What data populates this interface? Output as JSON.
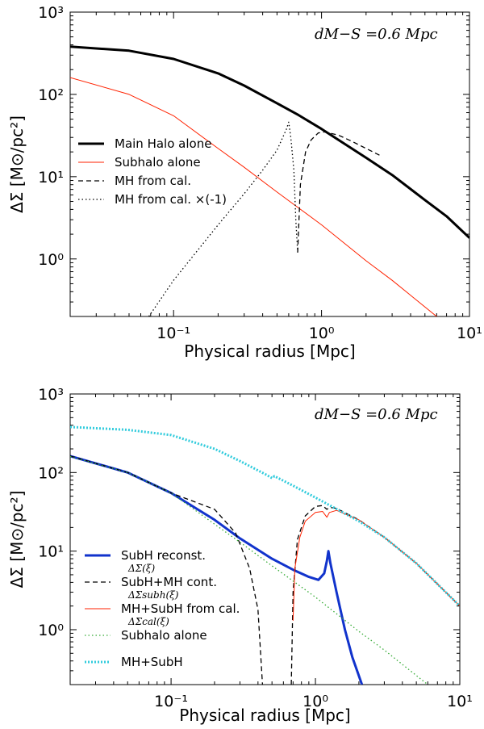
{
  "chart_data": [
    {
      "type": "line",
      "xscale": "log",
      "yscale": "log",
      "xlim": [
        0.02,
        10
      ],
      "ylim": [
        0.2,
        1000
      ],
      "xlabel": "Physical radius [Mpc]",
      "ylabel": "ΔΣ [M⊙/pc²]",
      "annotation": "dM−S =0.6 Mpc",
      "x_ticks": [
        "10⁻¹",
        "10⁰",
        "10¹"
      ],
      "y_ticks": [
        "10⁰",
        "10¹",
        "10²",
        "10³"
      ],
      "series": [
        {
          "name": "Main Halo alone",
          "color": "#000000",
          "style": "solid-thick",
          "points": [
            [
              0.02,
              380
            ],
            [
              0.05,
              340
            ],
            [
              0.1,
              270
            ],
            [
              0.2,
              180
            ],
            [
              0.3,
              128
            ],
            [
              0.5,
              78
            ],
            [
              0.7,
              56
            ],
            [
              1,
              38
            ],
            [
              2,
              17
            ],
            [
              3,
              10.5
            ],
            [
              5,
              5.2
            ],
            [
              7,
              3.3
            ],
            [
              10,
              1.8
            ]
          ]
        },
        {
          "name": "Subhalo alone",
          "color": "#ff2200",
          "style": "solid",
          "points": [
            [
              0.02,
              160
            ],
            [
              0.05,
              100
            ],
            [
              0.1,
              55
            ],
            [
              0.2,
              22
            ],
            [
              0.3,
              13
            ],
            [
              0.5,
              6.5
            ],
            [
              1,
              2.6
            ],
            [
              2,
              0.95
            ],
            [
              3,
              0.55
            ],
            [
              6,
              0.2
            ]
          ]
        },
        {
          "name": "MH from cal.",
          "color": "#000000",
          "style": "dashed",
          "points": [
            [
              0.69,
              1.2
            ],
            [
              0.72,
              8
            ],
            [
              0.78,
              20
            ],
            [
              0.85,
              28
            ],
            [
              0.95,
              34
            ],
            [
              1.05,
              35
            ],
            [
              1.3,
              32
            ],
            [
              1.6,
              27
            ],
            [
              2,
              22
            ],
            [
              2.5,
              18
            ]
          ]
        },
        {
          "name": "MH from cal. ×(-1)",
          "color": "#000000",
          "style": "dotted",
          "points": [
            [
              0.068,
              0.2
            ],
            [
              0.1,
              0.55
            ],
            [
              0.2,
              2.6
            ],
            [
              0.3,
              6.2
            ],
            [
              0.4,
              12
            ],
            [
              0.5,
              21
            ],
            [
              0.58,
              38
            ],
            [
              0.6,
              46
            ],
            [
              0.62,
              30
            ],
            [
              0.65,
              12
            ],
            [
              0.67,
              3
            ],
            [
              0.69,
              1.2
            ]
          ]
        }
      ]
    },
    {
      "type": "line",
      "xscale": "log",
      "yscale": "log",
      "xlim": [
        0.02,
        10
      ],
      "ylim": [
        0.2,
        1000
      ],
      "xlabel": "Physical radius [Mpc]",
      "ylabel": "ΔΣ [M⊙/pc²]",
      "annotation": "dM−S =0.6 Mpc",
      "x_ticks": [
        "10⁻¹",
        "10⁰",
        "10¹"
      ],
      "y_ticks": [
        "10⁰",
        "10¹",
        "10²",
        "10³"
      ],
      "series": [
        {
          "name": "SubH reconst.",
          "sub": "ΔΣ(ξ)",
          "color": "#1133cc",
          "style": "solid-thick",
          "points": [
            [
              0.02,
              162
            ],
            [
              0.05,
              100
            ],
            [
              0.1,
              55
            ],
            [
              0.2,
              25
            ],
            [
              0.3,
              14.5
            ],
            [
              0.5,
              8
            ],
            [
              0.7,
              5.8
            ],
            [
              0.9,
              4.7
            ],
            [
              1.05,
              4.3
            ],
            [
              1.15,
              5.2
            ],
            [
              1.2,
              7.5
            ],
            [
              1.23,
              10
            ],
            [
              1.27,
              7
            ],
            [
              1.4,
              3
            ],
            [
              1.6,
              1
            ],
            [
              1.8,
              0.45
            ],
            [
              2.1,
              0.2
            ]
          ]
        },
        {
          "name": "SubH+MH cont.",
          "sub": "ΔΣsubh(ξ)",
          "color": "#000000",
          "style": "dashed",
          "points": [
            [
              0.02,
              162
            ],
            [
              0.05,
              100
            ],
            [
              0.1,
              55
            ],
            [
              0.2,
              34
            ],
            [
              0.28,
              17
            ],
            [
              0.35,
              6
            ],
            [
              0.4,
              1.8
            ],
            [
              0.43,
              0.2
            ]
          ],
          "points2": [
            [
              0.68,
              0.2
            ],
            [
              0.7,
              3
            ],
            [
              0.75,
              14
            ],
            [
              0.85,
              28
            ],
            [
              1,
              37
            ],
            [
              1.12,
              38
            ],
            [
              1.2,
              34
            ],
            [
              1.25,
              36
            ],
            [
              1.4,
              35
            ],
            [
              2,
              25
            ],
            [
              3,
              15
            ],
            [
              5,
              7
            ],
            [
              10,
              2
            ]
          ]
        },
        {
          "name": "MH+SubH from cal.",
          "sub": "ΔΣcal(ξ)",
          "color": "#ff2200",
          "style": "solid",
          "points": [
            [
              0.7,
              1.3
            ],
            [
              0.72,
              6
            ],
            [
              0.78,
              15
            ],
            [
              0.85,
              24
            ],
            [
              1,
              31
            ],
            [
              1.12,
              32
            ],
            [
              1.2,
              27
            ],
            [
              1.25,
              31
            ],
            [
              1.4,
              33
            ],
            [
              2,
              25
            ],
            [
              3,
              15
            ],
            [
              5,
              7
            ],
            [
              10,
              2
            ]
          ]
        },
        {
          "name": "Subhalo alone",
          "color": "#33aa33",
          "style": "dotted",
          "points": [
            [
              0.02,
              160
            ],
            [
              0.05,
              100
            ],
            [
              0.1,
              55
            ],
            [
              0.2,
              22
            ],
            [
              0.3,
              13
            ],
            [
              0.5,
              6.5
            ],
            [
              1,
              2.6
            ],
            [
              2,
              0.95
            ],
            [
              3,
              0.55
            ],
            [
              6,
              0.2
            ]
          ]
        },
        {
          "name": "MH+SubH",
          "color": "#33ccdd",
          "style": "dotted-thick",
          "points": [
            [
              0.02,
              380
            ],
            [
              0.05,
              350
            ],
            [
              0.1,
              300
            ],
            [
              0.2,
              200
            ],
            [
              0.3,
              140
            ],
            [
              0.45,
              95
            ],
            [
              0.5,
              85
            ],
            [
              0.52,
              90
            ],
            [
              0.7,
              68
            ],
            [
              1,
              48
            ],
            [
              2,
              24
            ],
            [
              3,
              15
            ],
            [
              5,
              7
            ],
            [
              10,
              2
            ]
          ]
        }
      ]
    }
  ]
}
